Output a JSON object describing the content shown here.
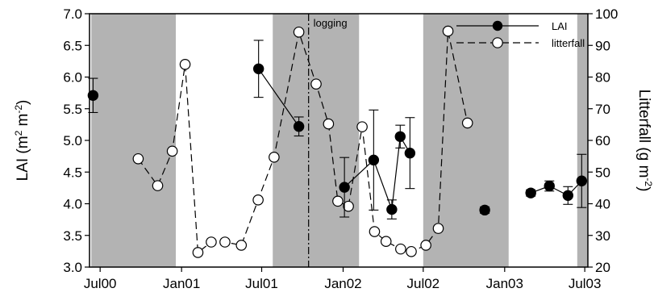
{
  "chart_data": {
    "type": "scatter",
    "title": "",
    "xlabel": "",
    "ylabel_left": "LAI (m2 m-2)",
    "ylabel_right": "Litterfall (g m-2)",
    "y_left_lim": [
      3.0,
      7.0
    ],
    "y_left_ticks": [
      "3.0",
      "3.5",
      "4.0",
      "4.5",
      "5.0",
      "5.5",
      "6.0",
      "6.5",
      "7.0"
    ],
    "y_right_lim": [
      20,
      100
    ],
    "y_right_ticks": [
      "20",
      "30",
      "40",
      "50",
      "60",
      "70",
      "80",
      "90",
      "100"
    ],
    "x_lim": [
      "2000-06-07",
      "2003-07-08"
    ],
    "x_ticks": [
      {
        "date": "2000-07-01",
        "label": "Jul00"
      },
      {
        "date": "2001-01-01",
        "label": "Jan01"
      },
      {
        "date": "2001-07-01",
        "label": "Jul01"
      },
      {
        "date": "2002-01-01",
        "label": "Jan02"
      },
      {
        "date": "2002-07-01",
        "label": "Jul02"
      },
      {
        "date": "2003-01-01",
        "label": "Jan03"
      },
      {
        "date": "2003-07-01",
        "label": "Jul03"
      }
    ],
    "shaded_periods": [
      {
        "start": "2000-06-11",
        "end": "2000-12-19"
      },
      {
        "start": "2001-07-26",
        "end": "2002-02-06"
      },
      {
        "start": "2002-07-01",
        "end": "2003-01-10"
      },
      {
        "start": "2003-06-14",
        "end": "2003-07-08"
      }
    ],
    "vertical_line": {
      "date": "2001-10-15",
      "label": "logging"
    },
    "legend": {
      "position": "top-right",
      "entries": [
        "LAI",
        "litterfall"
      ]
    },
    "series": [
      {
        "name": "LAI",
        "axis": "left",
        "style": "filled circle, solid line, error bars",
        "segments": [
          [
            {
              "date": "2000-06-15",
              "y": 5.71,
              "err": 0.27
            }
          ],
          [
            {
              "date": "2001-06-24",
              "y": 6.13,
              "err": 0.45
            },
            {
              "date": "2001-09-23",
              "y": 5.22,
              "err": 0.15
            }
          ],
          [
            {
              "date": "2002-01-04",
              "y": 4.26,
              "err": 0.47
            },
            {
              "date": "2002-03-11",
              "y": 4.69,
              "err": 0.79
            },
            {
              "date": "2002-04-21",
              "y": 3.91,
              "err": 0.15
            },
            {
              "date": "2002-05-10",
              "y": 5.06,
              "err": 0.18
            },
            {
              "date": "2002-06-01",
              "y": 4.8,
              "err": 0.56
            }
          ],
          [
            {
              "date": "2002-11-17",
              "y": 3.9,
              "err": 0.05
            }
          ],
          [
            {
              "date": "2003-03-01",
              "y": 4.17,
              "err": 0.05
            },
            {
              "date": "2003-04-12",
              "y": 4.28,
              "err": 0.08
            },
            {
              "date": "2003-05-24",
              "y": 4.13,
              "err": 0.14
            },
            {
              "date": "2003-06-24",
              "y": 4.36,
              "err": 0.42
            }
          ]
        ]
      },
      {
        "name": "litterfall",
        "axis": "right",
        "style": "open circle, dashed line",
        "points": [
          {
            "date": "2000-09-25",
            "y": 54.2
          },
          {
            "date": "2000-11-08",
            "y": 45.7
          },
          {
            "date": "2000-12-11",
            "y": 56.6
          },
          {
            "date": "2001-01-09",
            "y": 84.0
          },
          {
            "date": "2001-02-07",
            "y": 24.6
          },
          {
            "date": "2001-03-09",
            "y": 27.9
          },
          {
            "date": "2001-04-09",
            "y": 27.9
          },
          {
            "date": "2001-05-16",
            "y": 26.9
          },
          {
            "date": "2001-06-23",
            "y": 41.2
          },
          {
            "date": "2001-07-29",
            "y": 54.7
          },
          {
            "date": "2001-09-23",
            "y": 94.2
          },
          {
            "date": "2001-11-01",
            "y": 77.8
          },
          {
            "date": "2001-11-29",
            "y": 65.2
          },
          {
            "date": "2001-12-20",
            "y": 40.8
          },
          {
            "date": "2002-01-13",
            "y": 39.2
          },
          {
            "date": "2002-02-13",
            "y": 64.3
          },
          {
            "date": "2002-03-13",
            "y": 31.2
          },
          {
            "date": "2002-04-08",
            "y": 28.1
          },
          {
            "date": "2002-05-11",
            "y": 25.7
          },
          {
            "date": "2002-06-04",
            "y": 24.9
          },
          {
            "date": "2002-07-07",
            "y": 26.9
          },
          {
            "date": "2002-08-04",
            "y": 32.2
          },
          {
            "date": "2002-08-26",
            "y": 94.5
          },
          {
            "date": "2002-10-09",
            "y": 65.5
          }
        ]
      }
    ]
  }
}
